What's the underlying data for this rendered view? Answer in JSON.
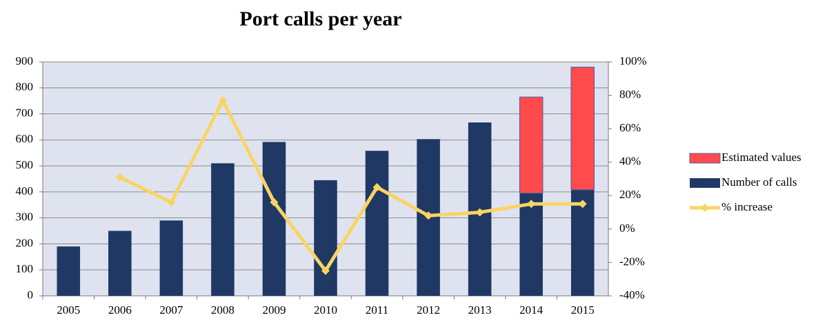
{
  "chart_data": {
    "type": "bar-line",
    "title": "Port calls per year",
    "categories": [
      "2005",
      "2006",
      "2007",
      "2008",
      "2009",
      "2010",
      "2011",
      "2012",
      "2013",
      "2014",
      "2015"
    ],
    "series": [
      {
        "name": "Number of calls",
        "color": "#1f3864",
        "values": [
          190,
          250,
          290,
          510,
          592,
          445,
          558,
          603,
          667,
          395,
          408
        ]
      },
      {
        "name": "Estimated values",
        "color": "#ff4b4b",
        "values": [
          null,
          null,
          null,
          null,
          null,
          null,
          null,
          null,
          null,
          370,
          472
        ]
      },
      {
        "name": "% increase",
        "color": "#f9d463",
        "type": "line",
        "axis": "y2",
        "values": [
          null,
          31,
          16,
          77,
          16,
          -25,
          25,
          8,
          10,
          15,
          15
        ]
      }
    ],
    "ylim": [
      0,
      900
    ],
    "yticks": [
      0,
      100,
      200,
      300,
      400,
      500,
      600,
      700,
      800,
      900
    ],
    "y2lim": [
      -40,
      100
    ],
    "y2ticks": [
      {
        "value": -40,
        "label": "-40%"
      },
      {
        "value": -20,
        "label": "-20%"
      },
      {
        "value": 0,
        "label": "0%"
      },
      {
        "value": 20,
        "label": "20%"
      },
      {
        "value": 40,
        "label": "40%"
      },
      {
        "value": 60,
        "label": "60%"
      },
      {
        "value": 80,
        "label": "80%"
      },
      {
        "value": 100,
        "label": "100%"
      }
    ],
    "grid": true,
    "legend": "right"
  }
}
